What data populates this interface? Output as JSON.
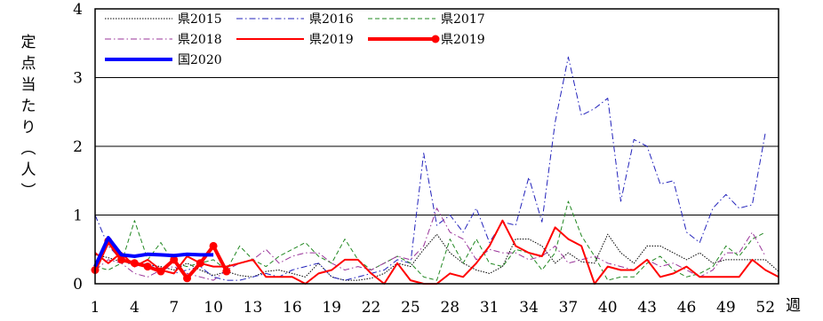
{
  "chart_data": {
    "type": "line",
    "title": "",
    "ylabel": "定点当たり（人）",
    "xlabel": "週",
    "ylim": [
      0,
      4
    ],
    "yticks": [
      "0",
      "1",
      "2",
      "3",
      "4"
    ],
    "xlim": [
      1,
      53
    ],
    "xticks": [
      "1",
      "4",
      "7",
      "10",
      "13",
      "16",
      "19",
      "22",
      "25",
      "28",
      "31",
      "34",
      "37",
      "40",
      "43",
      "46",
      "49",
      "52"
    ],
    "grid": "horizontal",
    "legend_position": "top-left",
    "series": [
      {
        "name": "県2015",
        "color": "#000000",
        "style": "dotted",
        "width": 1,
        "marker": false,
        "values": [
          0.42,
          0.38,
          0.32,
          0.3,
          0.28,
          0.25,
          0.2,
          0.3,
          0.2,
          0.12,
          0.18,
          0.12,
          0.1,
          0.18,
          0.2,
          0.15,
          0.1,
          0.3,
          0.1,
          0.05,
          0.05,
          0.08,
          0.15,
          0.3,
          0.25,
          0.5,
          0.72,
          0.45,
          0.3,
          0.2,
          0.15,
          0.25,
          0.65,
          0.65,
          0.55,
          0.3,
          0.45,
          0.32,
          0.3,
          0.72,
          0.45,
          0.3,
          0.55,
          0.55,
          0.45,
          0.35,
          0.45,
          0.3,
          0.35,
          0.35,
          0.35,
          0.35,
          0.18
        ]
      },
      {
        "name": "県2016",
        "color": "#2222bb",
        "style": "dashdot",
        "width": 1,
        "marker": false,
        "values": [
          1.0,
          0.55,
          0.35,
          0.25,
          0.3,
          0.2,
          0.15,
          0.2,
          0.25,
          0.1,
          0.05,
          0.05,
          0.1,
          0.15,
          0.1,
          0.2,
          0.25,
          0.3,
          0.1,
          0.05,
          0.1,
          0.15,
          0.2,
          0.35,
          0.3,
          1.9,
          0.85,
          1.0,
          0.75,
          1.1,
          0.6,
          0.9,
          0.85,
          1.55,
          0.9,
          2.35,
          3.3,
          2.45,
          2.55,
          2.7,
          1.2,
          2.1,
          2.0,
          1.45,
          1.5,
          0.75,
          0.6,
          1.1,
          1.3,
          1.1,
          1.15,
          2.2
        ]
      },
      {
        "name": "県2017",
        "color": "#228822",
        "style": "dashed",
        "width": 1,
        "marker": false,
        "values": [
          0.25,
          0.2,
          0.3,
          0.92,
          0.35,
          0.6,
          0.3,
          0.25,
          0.3,
          0.35,
          0.2,
          0.55,
          0.35,
          0.25,
          0.4,
          0.5,
          0.6,
          0.4,
          0.3,
          0.65,
          0.35,
          0.2,
          0.3,
          0.4,
          0.3,
          0.1,
          0.05,
          0.65,
          0.3,
          0.65,
          0.3,
          0.25,
          0.5,
          0.45,
          0.2,
          0.45,
          1.2,
          0.7,
          0.4,
          0.05,
          0.1,
          0.1,
          0.3,
          0.4,
          0.2,
          0.1,
          0.15,
          0.25,
          0.55,
          0.4,
          0.65,
          0.75
        ]
      },
      {
        "name": "県2018",
        "color": "#993399",
        "style": "dashdot",
        "width": 1,
        "marker": false,
        "values": [
          0.2,
          0.35,
          0.3,
          0.15,
          0.1,
          0.2,
          0.25,
          0.15,
          0.1,
          0.05,
          0.2,
          0.3,
          0.35,
          0.5,
          0.3,
          0.4,
          0.45,
          0.45,
          0.3,
          0.2,
          0.25,
          0.2,
          0.3,
          0.4,
          0.35,
          0.55,
          1.1,
          0.75,
          0.65,
          0.35,
          0.5,
          0.45,
          0.45,
          0.35,
          0.4,
          0.55,
          0.3,
          0.35,
          0.4,
          0.3,
          0.25,
          0.2,
          0.35,
          0.25,
          0.3,
          0.2,
          0.1,
          0.2,
          0.45,
          0.45,
          0.75,
          0.4
        ]
      },
      {
        "name": "県2019",
        "color": "#ff0000",
        "style": "solid",
        "width": 2,
        "marker": false,
        "values": [
          0.45,
          0.3,
          0.45,
          0.25,
          0.35,
          0.2,
          0.15,
          0.4,
          0.3,
          0.25,
          0.25,
          0.3,
          0.35,
          0.1,
          0.1,
          0.1,
          0.0,
          0.15,
          0.2,
          0.35,
          0.35,
          0.15,
          0.0,
          0.3,
          0.05,
          0.0,
          0.0,
          0.15,
          0.1,
          0.3,
          0.55,
          0.92,
          0.55,
          0.45,
          0.4,
          0.82,
          0.65,
          0.55,
          0.0,
          0.25,
          0.2,
          0.2,
          0.35,
          0.1,
          0.15,
          0.25,
          0.1,
          0.1,
          0.1,
          0.1,
          0.35,
          0.2,
          0.1
        ]
      },
      {
        "name": "県2019",
        "color": "#ff0000",
        "style": "solid",
        "width": 4,
        "marker": true,
        "values": [
          0.2,
          0.62,
          0.35,
          0.3,
          0.25,
          0.18,
          0.35,
          0.08,
          0.3,
          0.55,
          0.18
        ]
      },
      {
        "name": "国2020",
        "color": "#0000ff",
        "style": "solid",
        "width": 4,
        "marker": false,
        "values": [
          0.25,
          0.67,
          0.42,
          0.4,
          0.43,
          0.42,
          0.41,
          0.43,
          0.42,
          0.42
        ]
      }
    ]
  }
}
